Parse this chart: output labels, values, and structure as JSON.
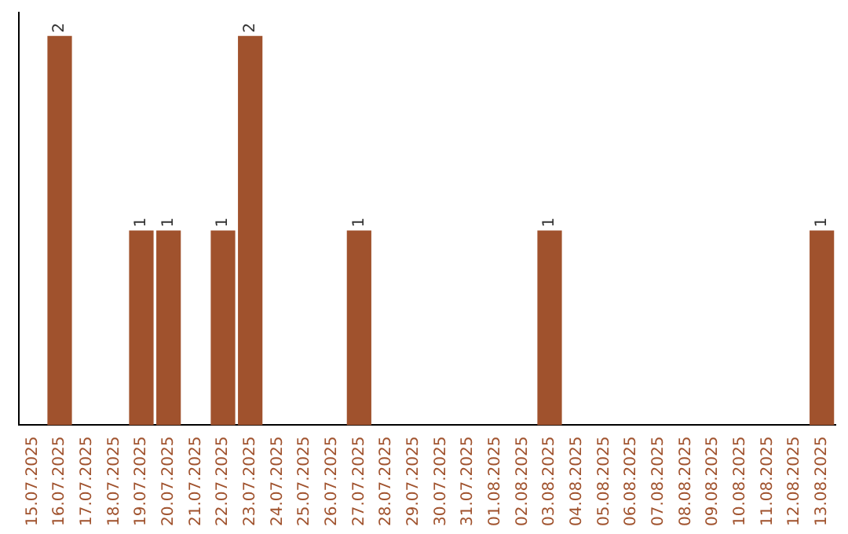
{
  "chart_data": {
    "type": "bar",
    "categories": [
      "15.07.2025",
      "16.07.2025",
      "17.07.2025",
      "18.07.2025",
      "19.07.2025",
      "20.07.2025",
      "21.07.2025",
      "22.07.2025",
      "23.07.2025",
      "24.07.2025",
      "25.07.2025",
      "26.07.2025",
      "27.07.2025",
      "28.07.2025",
      "29.07.2025",
      "30.07.2025",
      "31.07.2025",
      "01.08.2025",
      "02.08.2025",
      "03.08.2025",
      "04.08.2025",
      "05.08.2025",
      "06.08.2025",
      "07.08.2025",
      "08.08.2025",
      "09.08.2025",
      "10.08.2025",
      "11.08.2025",
      "12.08.2025",
      "13.08.2025"
    ],
    "values": [
      0,
      2,
      0,
      0,
      1,
      1,
      0,
      1,
      2,
      0,
      0,
      0,
      1,
      0,
      0,
      0,
      0,
      0,
      0,
      1,
      0,
      0,
      0,
      0,
      0,
      0,
      0,
      0,
      0,
      1
    ],
    "value_labels": [
      null,
      "2",
      null,
      null,
      "1",
      "1",
      null,
      "1",
      "2",
      null,
      null,
      null,
      "1",
      null,
      null,
      null,
      null,
      null,
      null,
      "1",
      null,
      null,
      null,
      null,
      null,
      null,
      null,
      null,
      null,
      "1"
    ],
    "color": "#a0522d",
    "grid": false,
    "legend": false
  }
}
